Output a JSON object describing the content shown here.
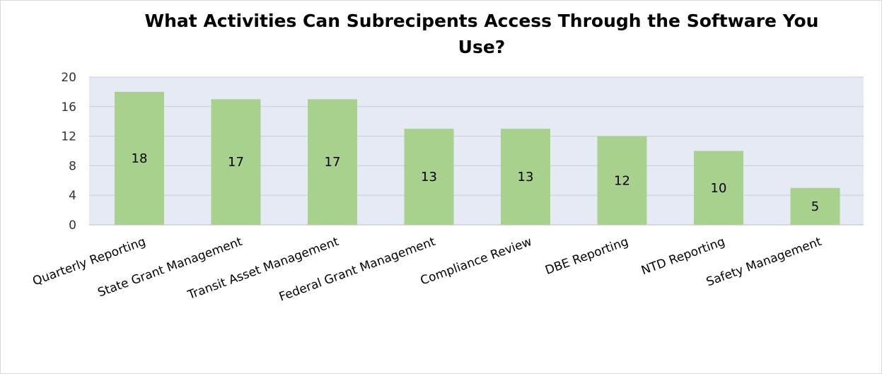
{
  "chart_data": {
    "type": "bar",
    "title": "What Activities Can Subrecipents Access Through the Software You Use?",
    "xlabel": "",
    "ylabel": "",
    "categories": [
      "Quarterly Reporting",
      "State Grant Management",
      "Transit Asset Management",
      "Federal Grant Management",
      "Compliance Review",
      "DBE Reporting",
      "NTD Reporting",
      "Safety Management"
    ],
    "values": [
      18,
      17,
      17,
      13,
      13,
      12,
      10,
      5
    ],
    "ylim": [
      0,
      20
    ],
    "yticks": [
      "0",
      "4",
      "8",
      "12",
      "16",
      "20"
    ],
    "grid": true,
    "legend": "none",
    "colors": {
      "bar": "#a9d18e",
      "plot_background": "#e6eaf5",
      "gridline": "#c9cdd6",
      "axis": "#bfbfbf"
    }
  }
}
